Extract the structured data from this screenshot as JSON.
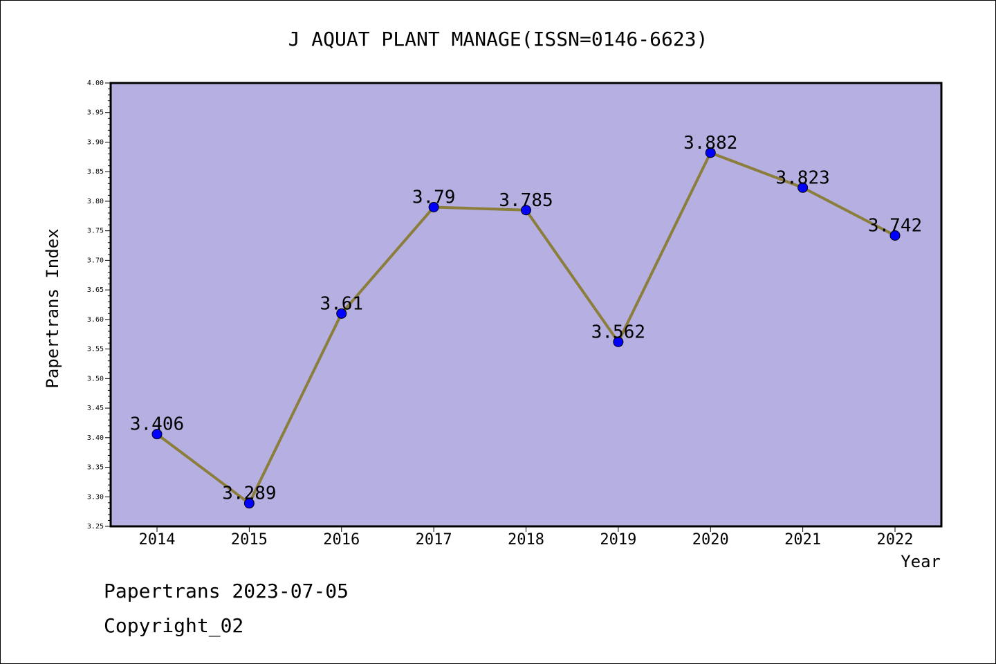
{
  "chart_data": {
    "type": "line",
    "title": "J AQUAT PLANT MANAGE(ISSN=0146-6623)",
    "xlabel": "Year",
    "ylabel": "Papertrans Index",
    "categories": [
      "2014",
      "2015",
      "2016",
      "2017",
      "2018",
      "2019",
      "2020",
      "2021",
      "2022"
    ],
    "series": [
      {
        "values": [
          3.406,
          3.289,
          3.61,
          3.79,
          3.785,
          3.562,
          3.882,
          3.823,
          3.742
        ],
        "labels": [
          "3.406",
          "3.289",
          "3.61",
          "3.79",
          "3.785",
          "3.562",
          "3.882",
          "3.823",
          "3.742"
        ]
      }
    ],
    "ylim": [
      3.25,
      4.0
    ],
    "ytick_step": 0.05,
    "grid": false,
    "legend": "none"
  },
  "footer": {
    "line1": "Papertrans 2023-07-05",
    "line2": "Copyright_02"
  },
  "colors": {
    "plot_background": "#b5afe2",
    "line": "#8b7d3a",
    "marker": "#0000ff",
    "axis": "#000000"
  }
}
